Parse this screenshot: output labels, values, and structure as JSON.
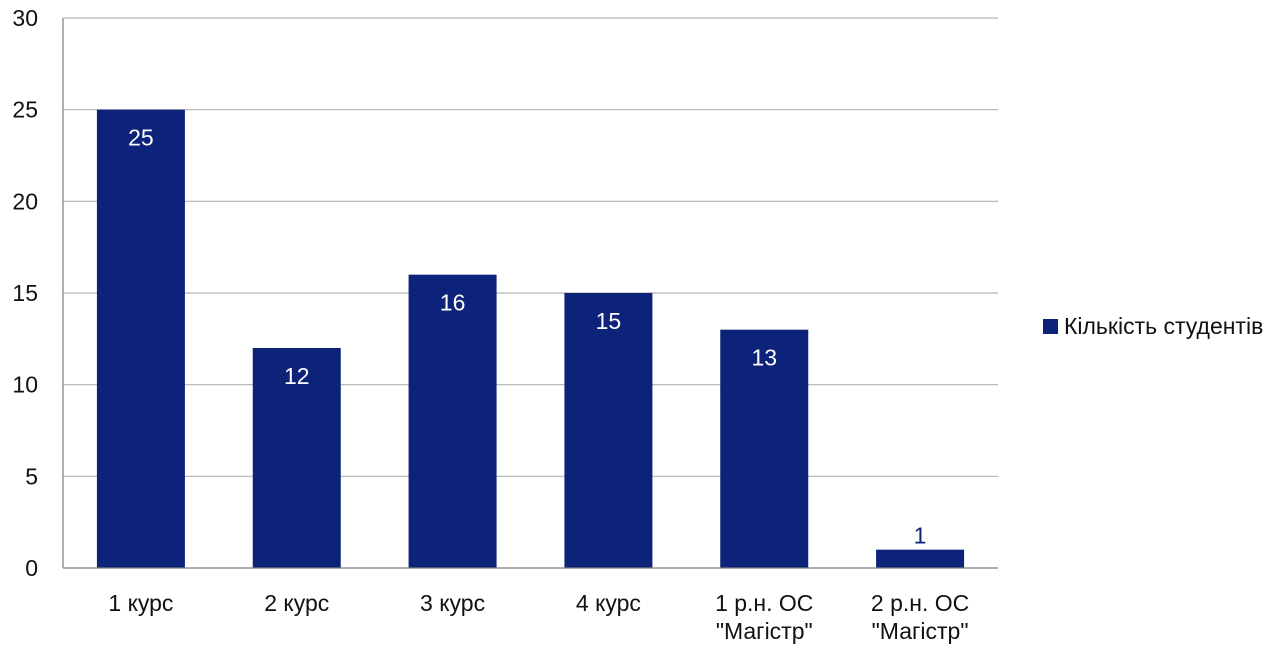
{
  "chart_data": {
    "type": "bar",
    "title": "",
    "xlabel": "",
    "ylabel": "",
    "categories": [
      [
        "1 курс"
      ],
      [
        "2 курс"
      ],
      [
        "3 курс"
      ],
      [
        "4 курс"
      ],
      [
        "1 р.н. ОС",
        "\"Магістр\""
      ],
      [
        "2 р.н. ОС",
        "\"Магістр\""
      ]
    ],
    "series": [
      {
        "name": "Кількість студентів",
        "values": [
          25,
          12,
          16,
          15,
          13,
          1
        ]
      }
    ],
    "ylim": [
      0,
      30
    ],
    "yticks": [
      0,
      5,
      10,
      15,
      20,
      25,
      30
    ],
    "grid": true,
    "legend_position": "right",
    "colors": {
      "bar": "#0d2379",
      "grid": "#b3b3b3",
      "axis": "#7f7f7f",
      "label_inside": "#ffffff",
      "label_outside": "#0d2379"
    }
  }
}
